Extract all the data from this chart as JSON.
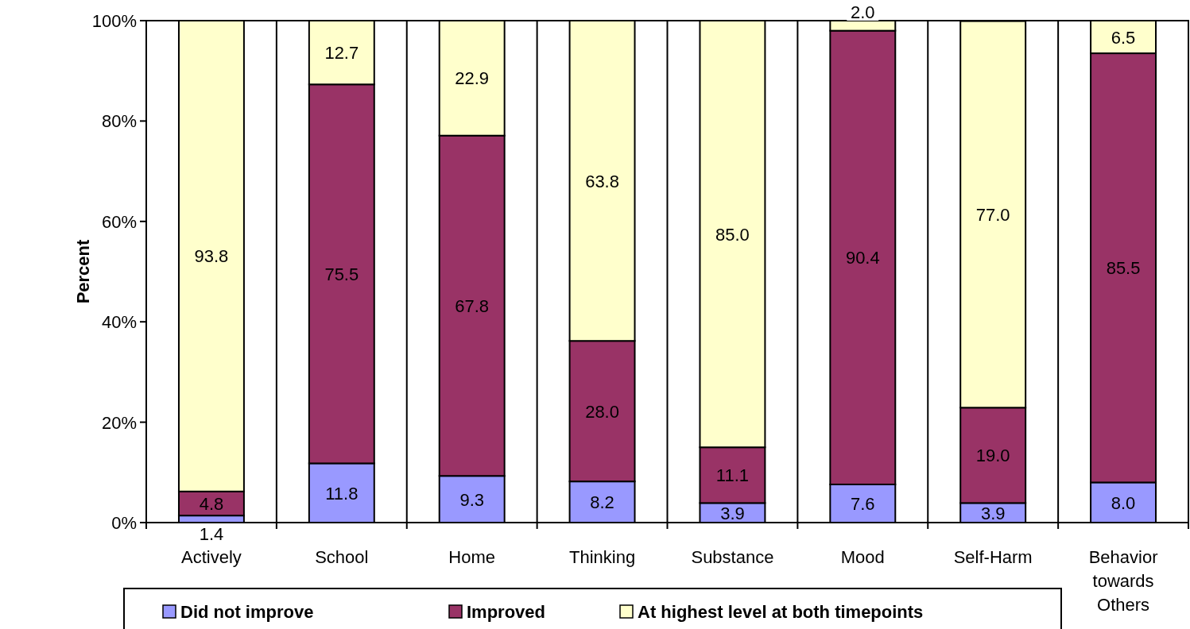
{
  "chart_data": {
    "type": "bar",
    "stacked": true,
    "ylabel": "Percent",
    "categories": [
      "Actively",
      "School",
      "Home",
      "Thinking",
      "Substance",
      "Mood",
      "Self-Harm",
      "Behavior towards Others"
    ],
    "series": [
      {
        "name": "Did not improve",
        "color": "#9999ff",
        "values": [
          1.4,
          11.8,
          9.3,
          8.2,
          3.9,
          7.6,
          3.9,
          8.0
        ],
        "value_labels": [
          "1.4",
          "11.8",
          "9.3",
          "8.2",
          "3.9",
          "7.6",
          "3.9",
          "8.0"
        ]
      },
      {
        "name": "Improved",
        "color": "#993366",
        "values": [
          4.8,
          75.5,
          67.8,
          28.0,
          11.1,
          90.4,
          19.0,
          85.5
        ],
        "value_labels": [
          "4.8",
          "75.5",
          "67.8",
          "28.0",
          "11.1",
          "90.4",
          "19.0",
          "85.5"
        ]
      },
      {
        "name": "At highest level at both timepoints",
        "color": "#ffffcc",
        "values": [
          93.8,
          12.7,
          22.9,
          63.8,
          85.0,
          2.0,
          77.0,
          6.5
        ],
        "value_labels": [
          "93.8",
          "12.7",
          "22.9",
          "63.8",
          "85.0",
          "2.0",
          "77.0",
          "6.5"
        ]
      }
    ],
    "ylim": [
      0,
      100
    ],
    "yticks": [
      {
        "value": 0,
        "label": "0%"
      },
      {
        "value": 20,
        "label": "20%"
      },
      {
        "value": 40,
        "label": "40%"
      },
      {
        "value": 60,
        "label": "60%"
      },
      {
        "value": 80,
        "label": "80%"
      },
      {
        "value": 100,
        "label": "100%"
      }
    ],
    "grid": "x",
    "legend": "bottom"
  }
}
